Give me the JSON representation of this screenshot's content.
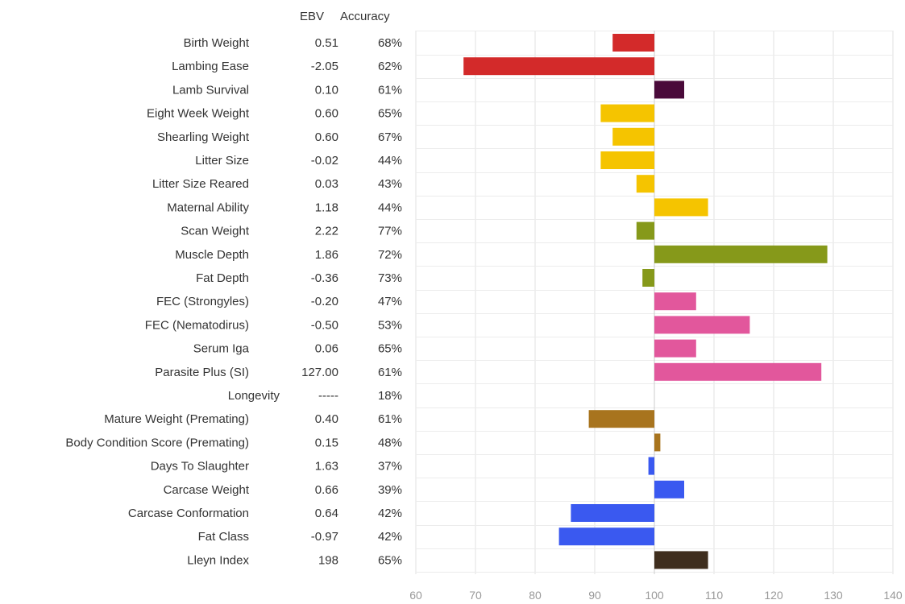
{
  "headers": {
    "ebv": "EBV",
    "accuracy": "Accuracy"
  },
  "chart_data": {
    "type": "bar",
    "orientation": "horizontal",
    "baseline": 100,
    "xlim": [
      60,
      140
    ],
    "xticks": [
      60,
      70,
      80,
      90,
      100,
      110,
      120,
      130,
      140
    ],
    "grid": true,
    "rows": [
      {
        "trait": "Birth Weight",
        "ebv": "0.51",
        "accuracy": "68%",
        "value": 93,
        "color": "#d32a2a"
      },
      {
        "trait": "Lambing Ease",
        "ebv": "-2.05",
        "accuracy": "62%",
        "value": 68,
        "color": "#d32a2a"
      },
      {
        "trait": "Lamb Survival",
        "ebv": "0.10",
        "accuracy": "61%",
        "value": 105,
        "color": "#4a0a3a"
      },
      {
        "trait": "Eight Week Weight",
        "ebv": "0.60",
        "accuracy": "65%",
        "value": 91,
        "color": "#f5c400"
      },
      {
        "trait": "Shearling Weight",
        "ebv": "0.60",
        "accuracy": "67%",
        "value": 93,
        "color": "#f5c400"
      },
      {
        "trait": "Litter Size",
        "ebv": "-0.02",
        "accuracy": "44%",
        "value": 91,
        "color": "#f5c400"
      },
      {
        "trait": "Litter Size Reared",
        "ebv": "0.03",
        "accuracy": "43%",
        "value": 97,
        "color": "#f5c400"
      },
      {
        "trait": "Maternal Ability",
        "ebv": "1.18",
        "accuracy": "44%",
        "value": 109,
        "color": "#f5c400"
      },
      {
        "trait": "Scan Weight",
        "ebv": "2.22",
        "accuracy": "77%",
        "value": 97,
        "color": "#86991a"
      },
      {
        "trait": "Muscle Depth",
        "ebv": "1.86",
        "accuracy": "72%",
        "value": 129,
        "color": "#86991a"
      },
      {
        "trait": "Fat Depth",
        "ebv": "-0.36",
        "accuracy": "73%",
        "value": 98,
        "color": "#86991a"
      },
      {
        "trait": "FEC (Strongyles)",
        "ebv": "-0.20",
        "accuracy": "47%",
        "value": 107,
        "color": "#e2579c"
      },
      {
        "trait": "FEC (Nematodirus)",
        "ebv": "-0.50",
        "accuracy": "53%",
        "value": 116,
        "color": "#e2579c"
      },
      {
        "trait": "Serum Iga",
        "ebv": "0.06",
        "accuracy": "65%",
        "value": 107,
        "color": "#e2579c"
      },
      {
        "trait": "Parasite Plus (SI)",
        "ebv": "127.00",
        "accuracy": "61%",
        "value": 128,
        "color": "#e2579c"
      },
      {
        "trait": "Longevity",
        "ebv": "-----",
        "accuracy": "18%",
        "value": null,
        "color": "#999999"
      },
      {
        "trait": "Mature Weight (Premating)",
        "ebv": "0.40",
        "accuracy": "61%",
        "value": 89,
        "color": "#a8741e"
      },
      {
        "trait": "Body Condition Score (Premating)",
        "ebv": "0.15",
        "accuracy": "48%",
        "value": 101,
        "color": "#a8741e"
      },
      {
        "trait": "Days To Slaughter",
        "ebv": "1.63",
        "accuracy": "37%",
        "value": 99,
        "color": "#3a59f0"
      },
      {
        "trait": "Carcase Weight",
        "ebv": "0.66",
        "accuracy": "39%",
        "value": 105,
        "color": "#3a59f0"
      },
      {
        "trait": "Carcase Conformation",
        "ebv": "0.64",
        "accuracy": "42%",
        "value": 86,
        "color": "#3a59f0"
      },
      {
        "trait": "Fat Class",
        "ebv": "-0.97",
        "accuracy": "42%",
        "value": 84,
        "color": "#3a59f0"
      },
      {
        "trait": "Lleyn Index",
        "ebv": "198",
        "accuracy": "65%",
        "value": 109,
        "color": "#3f2e1e"
      }
    ]
  }
}
